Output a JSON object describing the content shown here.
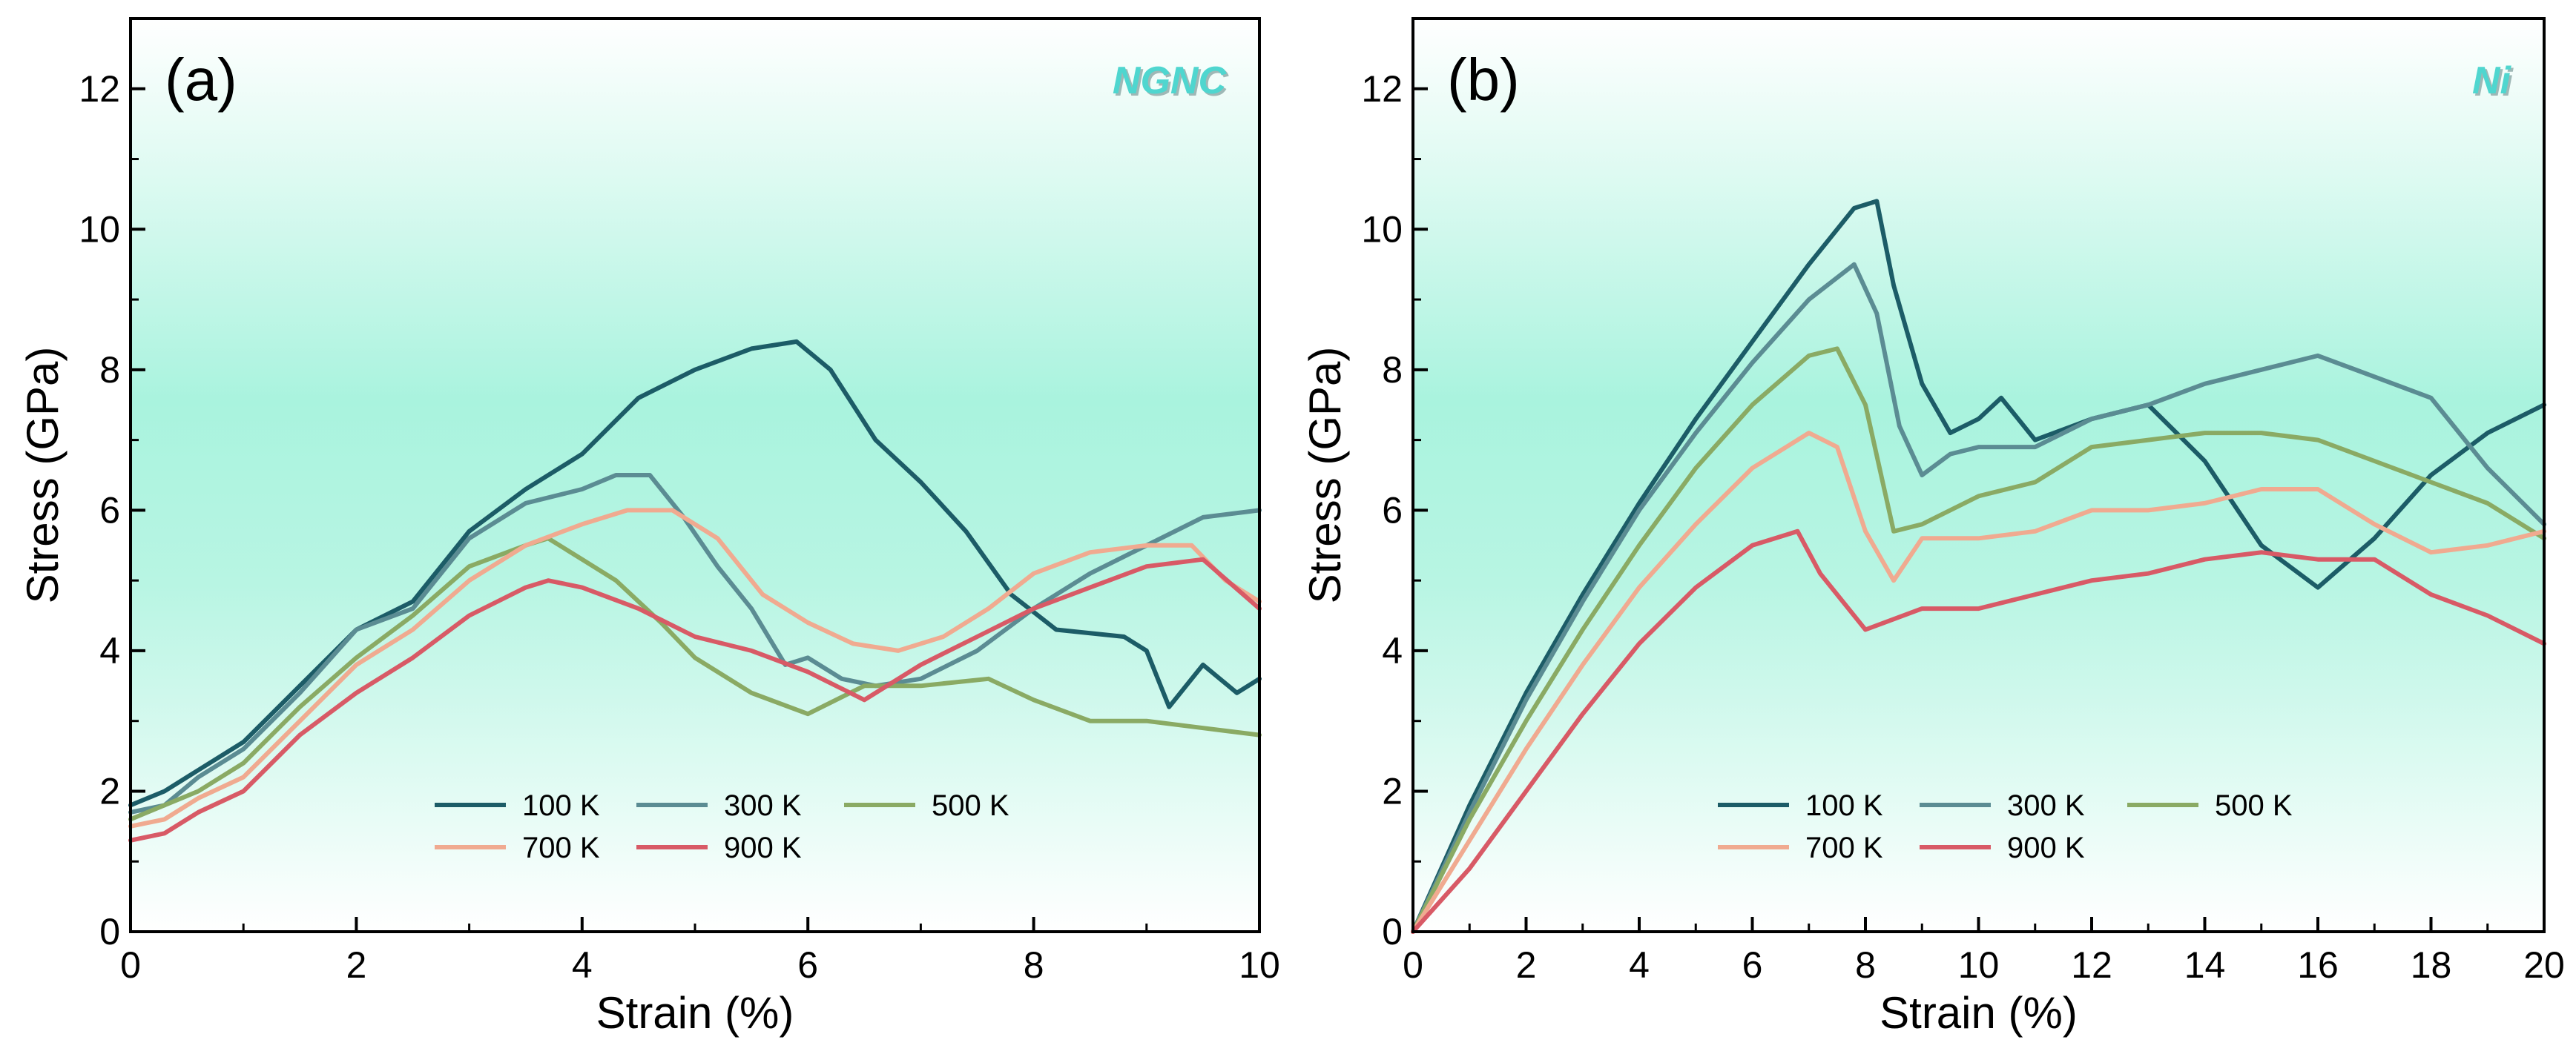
{
  "chart_data": [
    {
      "type": "line",
      "panel_label": "(a)",
      "tag": "NGNC",
      "xlabel": "Strain (%)",
      "ylabel": "Stress (GPa)",
      "xlim": [
        0,
        10
      ],
      "ylim": [
        0,
        13
      ],
      "xticks": [
        0,
        2,
        4,
        6,
        8,
        10
      ],
      "yticks": [
        0,
        2,
        4,
        6,
        8,
        10,
        12
      ],
      "legend_position": "bottom-center",
      "series": [
        {
          "name": "100 K",
          "color": "#1c5c67",
          "x": [
            0,
            0.3,
            0.6,
            1.0,
            1.5,
            2.0,
            2.5,
            3.0,
            3.5,
            4.0,
            4.5,
            5.0,
            5.5,
            5.9,
            6.2,
            6.6,
            7.0,
            7.4,
            7.8,
            8.2,
            8.8,
            9.0,
            9.2,
            9.5,
            9.8,
            10.0
          ],
          "y": [
            1.8,
            2.0,
            2.3,
            2.7,
            3.5,
            4.3,
            4.7,
            5.7,
            6.3,
            6.8,
            7.6,
            8.0,
            8.3,
            8.4,
            8.0,
            7.0,
            6.4,
            5.7,
            4.8,
            4.3,
            4.2,
            4.0,
            3.2,
            3.8,
            3.4,
            3.6
          ]
        },
        {
          "name": "300 K",
          "color": "#5b8c93",
          "x": [
            0,
            0.3,
            0.6,
            1.0,
            1.5,
            2.0,
            2.5,
            3.0,
            3.5,
            4.0,
            4.3,
            4.6,
            4.9,
            5.2,
            5.5,
            5.8,
            6.0,
            6.3,
            6.6,
            7.0,
            7.5,
            8.0,
            8.5,
            9.0,
            9.5,
            10.0
          ],
          "y": [
            1.7,
            1.8,
            2.2,
            2.6,
            3.4,
            4.3,
            4.6,
            5.6,
            6.1,
            6.3,
            6.5,
            6.5,
            5.9,
            5.2,
            4.6,
            3.8,
            3.9,
            3.6,
            3.5,
            3.6,
            4.0,
            4.6,
            5.1,
            5.5,
            5.9,
            6.0
          ]
        },
        {
          "name": "500 K",
          "color": "#8aaa64",
          "x": [
            0,
            0.3,
            0.6,
            1.0,
            1.5,
            2.0,
            2.5,
            3.0,
            3.5,
            3.7,
            4.0,
            4.3,
            4.7,
            5.0,
            5.5,
            6.0,
            6.5,
            7.0,
            7.6,
            8.0,
            8.5,
            9.0,
            9.5,
            10.0
          ],
          "y": [
            1.6,
            1.8,
            2.0,
            2.4,
            3.2,
            3.9,
            4.5,
            5.2,
            5.5,
            5.6,
            5.3,
            5.0,
            4.4,
            3.9,
            3.4,
            3.1,
            3.5,
            3.5,
            3.6,
            3.3,
            3.0,
            3.0,
            2.9,
            2.8
          ]
        },
        {
          "name": "700 K",
          "color": "#f0aa90",
          "x": [
            0,
            0.3,
            0.6,
            1.0,
            1.5,
            2.0,
            2.5,
            3.0,
            3.5,
            4.0,
            4.4,
            4.8,
            5.2,
            5.6,
            6.0,
            6.4,
            6.8,
            7.2,
            7.6,
            8.0,
            8.5,
            9.0,
            9.4,
            9.7,
            10.0
          ],
          "y": [
            1.5,
            1.6,
            1.9,
            2.2,
            3.0,
            3.8,
            4.3,
            5.0,
            5.5,
            5.8,
            6.0,
            6.0,
            5.6,
            4.8,
            4.4,
            4.1,
            4.0,
            4.2,
            4.6,
            5.1,
            5.4,
            5.5,
            5.5,
            5.0,
            4.7
          ]
        },
        {
          "name": "900 K",
          "color": "#d85a66",
          "x": [
            0,
            0.3,
            0.6,
            1.0,
            1.5,
            2.0,
            2.5,
            3.0,
            3.5,
            3.7,
            4.0,
            4.5,
            5.0,
            5.5,
            6.0,
            6.5,
            7.0,
            7.5,
            8.0,
            8.5,
            9.0,
            9.5,
            10.0
          ],
          "y": [
            1.3,
            1.4,
            1.7,
            2.0,
            2.8,
            3.4,
            3.9,
            4.5,
            4.9,
            5.0,
            4.9,
            4.6,
            4.2,
            4.0,
            3.7,
            3.3,
            3.8,
            4.2,
            4.6,
            4.9,
            5.2,
            5.3,
            4.6
          ]
        }
      ]
    },
    {
      "type": "line",
      "panel_label": "(b)",
      "tag": "Ni",
      "xlabel": "Strain (%)",
      "ylabel": "Stress (GPa)",
      "xlim": [
        0,
        20
      ],
      "ylim": [
        0,
        13
      ],
      "xticks": [
        0,
        2,
        4,
        6,
        8,
        10,
        12,
        14,
        16,
        18,
        20
      ],
      "yticks": [
        0,
        2,
        4,
        6,
        8,
        10,
        12
      ],
      "legend_position": "bottom-center",
      "series": [
        {
          "name": "100 K",
          "color": "#1c5c67",
          "x": [
            0,
            1,
            2,
            3,
            4,
            5,
            6,
            7,
            7.8,
            8.2,
            8.5,
            9.0,
            9.5,
            10.0,
            10.4,
            11.0,
            12.0,
            13.0,
            14.0,
            15.0,
            16.0,
            17.0,
            18.0,
            19.0,
            20.0
          ],
          "y": [
            0,
            1.8,
            3.4,
            4.8,
            6.1,
            7.3,
            8.4,
            9.5,
            10.3,
            10.4,
            9.2,
            7.8,
            7.1,
            7.3,
            7.6,
            7.0,
            7.3,
            7.5,
            6.7,
            5.5,
            4.9,
            5.6,
            6.5,
            7.1,
            7.5
          ]
        },
        {
          "name": "300 K",
          "color": "#5b8c93",
          "x": [
            0,
            1,
            2,
            3,
            4,
            5,
            6,
            7,
            7.8,
            8.2,
            8.6,
            9.0,
            9.5,
            10.0,
            11.0,
            12.0,
            13.0,
            14.0,
            15.0,
            16.0,
            17.0,
            18.0,
            19.0,
            20.0
          ],
          "y": [
            0,
            1.7,
            3.3,
            4.7,
            6.0,
            7.1,
            8.1,
            9.0,
            9.5,
            8.8,
            7.2,
            6.5,
            6.8,
            6.9,
            6.9,
            7.3,
            7.5,
            7.8,
            8.0,
            8.2,
            7.9,
            7.6,
            6.6,
            5.8
          ]
        },
        {
          "name": "500 K",
          "color": "#8aaa64",
          "x": [
            0,
            1,
            2,
            3,
            4,
            5,
            6,
            7,
            7.5,
            8.0,
            8.5,
            9.0,
            10.0,
            11.0,
            12.0,
            13.0,
            14.0,
            15.0,
            16.0,
            17.0,
            18.0,
            19.0,
            20.0
          ],
          "y": [
            0,
            1.6,
            3.0,
            4.3,
            5.5,
            6.6,
            7.5,
            8.2,
            8.3,
            7.5,
            5.7,
            5.8,
            6.2,
            6.4,
            6.9,
            7.0,
            7.1,
            7.1,
            7.0,
            6.7,
            6.4,
            6.1,
            5.6
          ]
        },
        {
          "name": "700 K",
          "color": "#f0aa90",
          "x": [
            0,
            1,
            2,
            3,
            4,
            5,
            6,
            7,
            7.5,
            8.0,
            8.5,
            9.0,
            10.0,
            11.0,
            12.0,
            13.0,
            14.0,
            15.0,
            16.0,
            17.0,
            18.0,
            19.0,
            20.0
          ],
          "y": [
            0,
            1.3,
            2.6,
            3.8,
            4.9,
            5.8,
            6.6,
            7.1,
            6.9,
            5.7,
            5.0,
            5.6,
            5.6,
            5.7,
            6.0,
            6.0,
            6.1,
            6.3,
            6.3,
            5.8,
            5.4,
            5.5,
            5.7
          ]
        },
        {
          "name": "900 K",
          "color": "#d85a66",
          "x": [
            0,
            1,
            2,
            3,
            4,
            5,
            6,
            6.8,
            7.2,
            8.0,
            9.0,
            10.0,
            11.0,
            12.0,
            13.0,
            14.0,
            15.0,
            16.0,
            17.0,
            18.0,
            19.0,
            20.0
          ],
          "y": [
            0,
            0.9,
            2.0,
            3.1,
            4.1,
            4.9,
            5.5,
            5.7,
            5.1,
            4.3,
            4.6,
            4.6,
            4.8,
            5.0,
            5.1,
            5.3,
            5.4,
            5.3,
            5.3,
            4.8,
            4.5,
            4.1
          ]
        }
      ]
    }
  ]
}
